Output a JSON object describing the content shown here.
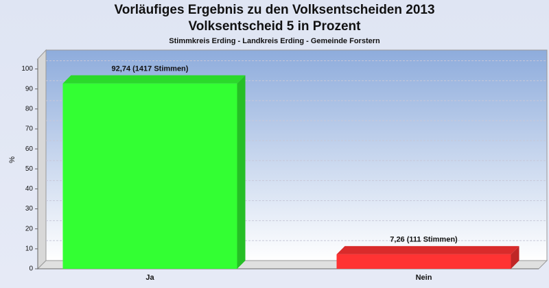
{
  "chart_data": {
    "type": "bar",
    "title": [
      "Vorläufiges Ergebnis zu den Volksentscheiden 2013",
      "Volksentscheid 5 in Prozent"
    ],
    "subtitle": "Stimmkreis Erding - Landkreis Erding - Gemeinde Forstern",
    "y_label": "%",
    "categories": [
      "Ja",
      "Nein"
    ],
    "values": [
      92.74,
      7.26
    ],
    "value_labels": [
      "92,74 (1417 Stimmen)",
      "7,26 (111 Stimmen)"
    ],
    "colors": [
      "#33ff33",
      "#ff3333"
    ],
    "ylim": [
      0,
      105
    ],
    "yticks": [
      0,
      10,
      20,
      30,
      40,
      50,
      60,
      70,
      80,
      90,
      100
    ],
    "grid": true
  }
}
